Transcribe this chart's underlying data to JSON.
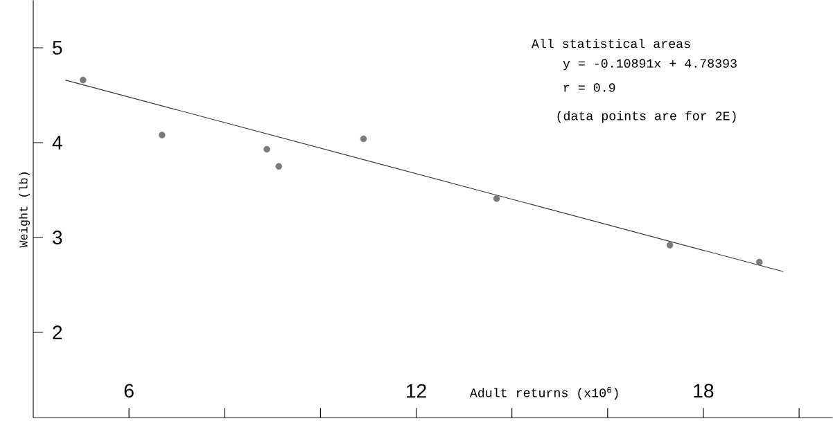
{
  "chart_data": {
    "type": "scatter",
    "xlabel": "Adult returns (x10$^{6}$)",
    "ylabel": "Weight (lb)",
    "annotations": [
      "All statistical areas",
      "y = -0.10891x + 4.78393",
      "r =  0.9",
      "(data points are for 2E)"
    ],
    "xlim": [
      4,
      20.7
    ],
    "ylim": [
      1.1,
      5.5
    ],
    "xticks": [
      6,
      {
        "value": 8,
        "label": null
      },
      {
        "value": 10,
        "label": null
      },
      12,
      {
        "value": 14,
        "label": null
      },
      {
        "value": 16,
        "label": null
      },
      18,
      {
        "value": 20,
        "label": null
      }
    ],
    "yticks": [
      2,
      3,
      4,
      5
    ],
    "series": [
      {
        "color": "#7a7a7a",
        "marker": "circle",
        "x": [
          5.04,
          6.69,
          8.88,
          9.13,
          10.9,
          13.68,
          17.3,
          19.17
        ],
        "values": [
          4.66,
          4.08,
          3.93,
          3.75,
          4.04,
          3.41,
          2.92,
          2.74
        ]
      },
      {
        "type": "line",
        "color": "#333333",
        "marker": "none",
        "line_style": "solid",
        "x": [
          4.67,
          19.67
        ],
        "values": [
          4.66,
          2.64
        ]
      }
    ]
  }
}
